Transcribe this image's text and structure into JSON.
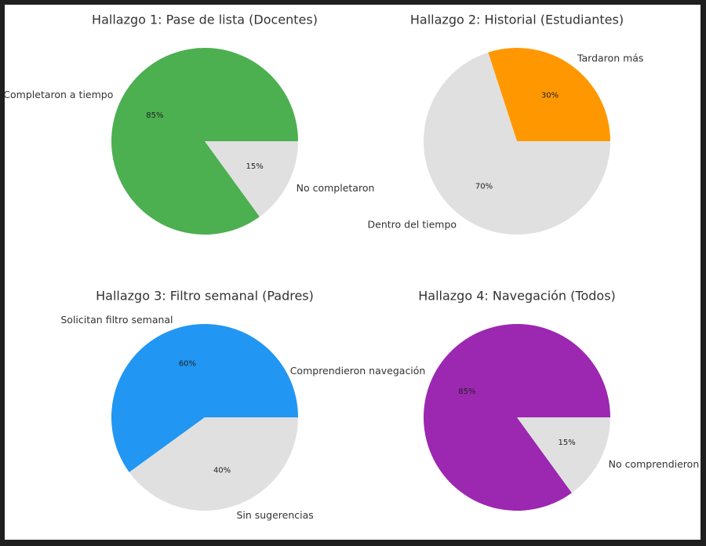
{
  "chart_data": [
    {
      "type": "pie",
      "title": "Hallazgo 1: Pase de lista (Docentes)",
      "slices": [
        {
          "label": "Completaron a tiempo",
          "value": 85,
          "pct_label": "85%",
          "color": "#4caf50"
        },
        {
          "label": "No completaron",
          "value": 15,
          "pct_label": "15%",
          "color": "#e0e0e0"
        }
      ]
    },
    {
      "type": "pie",
      "title": "Hallazgo 2: Historial (Estudiantes)",
      "slices": [
        {
          "label": "Tardaron más",
          "value": 30,
          "pct_label": "30%",
          "color": "#ff9800"
        },
        {
          "label": "Dentro del tiempo",
          "value": 70,
          "pct_label": "70%",
          "color": "#e0e0e0"
        }
      ]
    },
    {
      "type": "pie",
      "title": "Hallazgo 3: Filtro semanal (Padres)",
      "slices": [
        {
          "label": "Solicitan filtro semanal",
          "value": 60,
          "pct_label": "60%",
          "color": "#2196f3"
        },
        {
          "label": "Sin sugerencias",
          "value": 40,
          "pct_label": "40%",
          "color": "#e0e0e0"
        }
      ]
    },
    {
      "type": "pie",
      "title": "Hallazgo 4: Navegación (Todos)",
      "slices": [
        {
          "label": "Comprendieron navegación",
          "value": 85,
          "pct_label": "85%",
          "color": "#9c27b0"
        },
        {
          "label": "No comprendieron",
          "value": 15,
          "pct_label": "15%",
          "color": "#e0e0e0"
        }
      ]
    }
  ]
}
